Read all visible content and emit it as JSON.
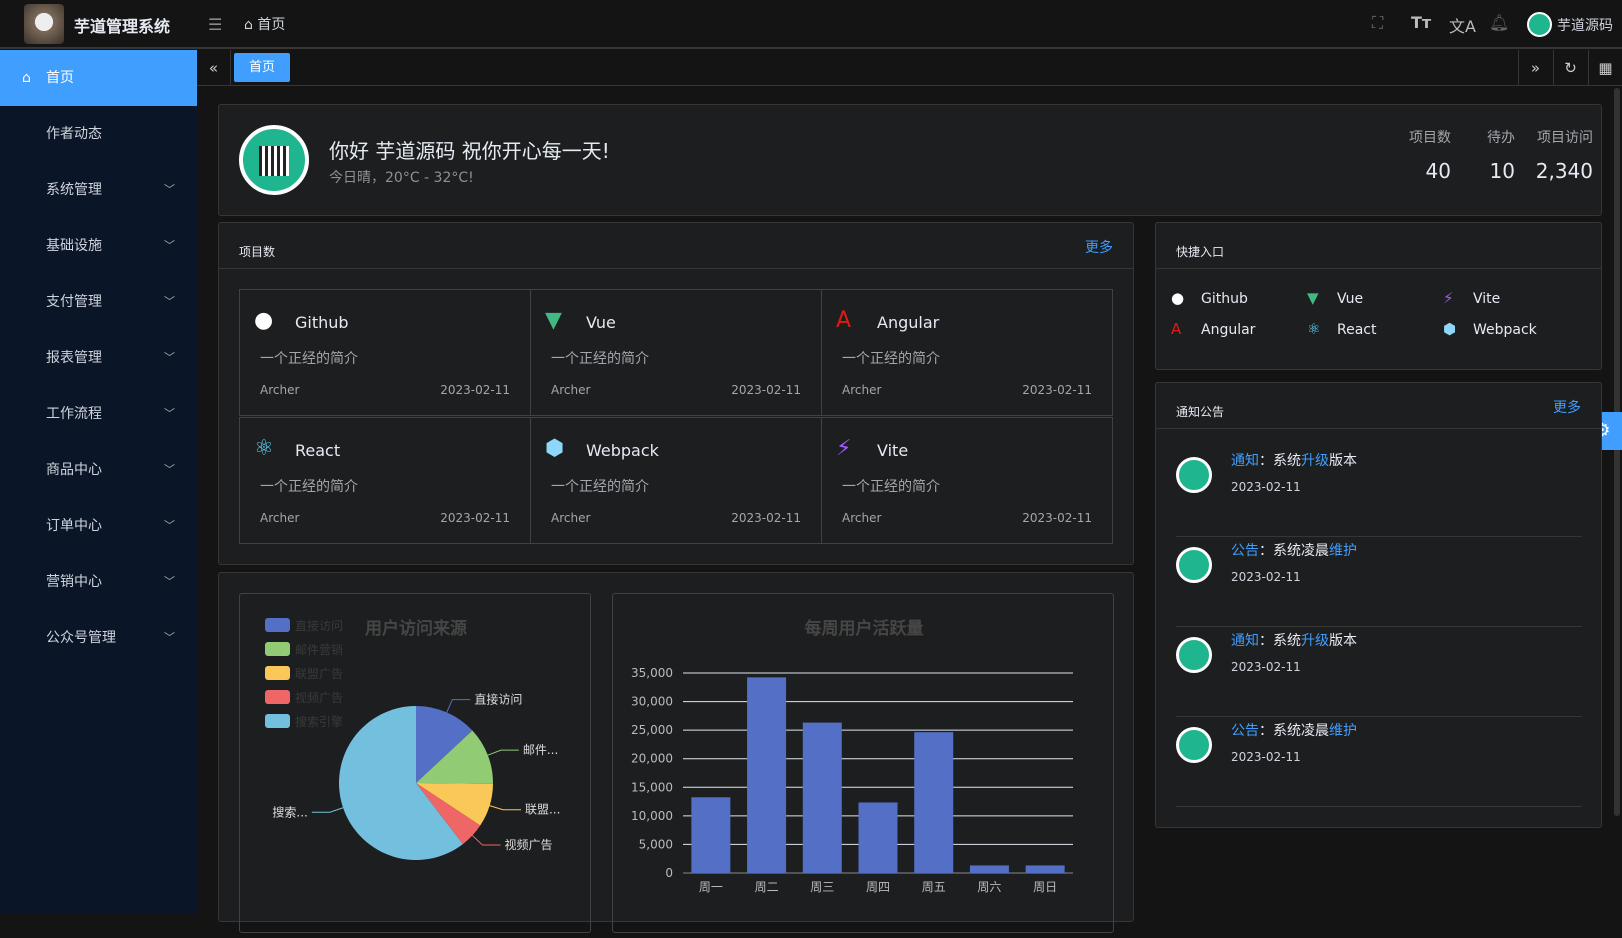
{
  "header": {
    "app_title": "芋道管理系统",
    "breadcrumb": "首页",
    "user_name": "芋道源码",
    "icons": [
      "fullscreen-icon",
      "font-size-icon",
      "translate-icon",
      "bell-icon"
    ]
  },
  "sidebar": {
    "items": [
      {
        "label": "首页",
        "active": true
      },
      {
        "label": "作者动态"
      },
      {
        "label": "系统管理",
        "expandable": true
      },
      {
        "label": "基础设施",
        "expandable": true
      },
      {
        "label": "支付管理",
        "expandable": true
      },
      {
        "label": "报表管理",
        "expandable": true
      },
      {
        "label": "工作流程",
        "expandable": true
      },
      {
        "label": "商品中心",
        "expandable": true
      },
      {
        "label": "订单中心",
        "expandable": true
      },
      {
        "label": "营销中心",
        "expandable": true
      },
      {
        "label": "公众号管理",
        "expandable": true
      }
    ]
  },
  "tabs": {
    "items": [
      "首页"
    ]
  },
  "welcome": {
    "greeting": "你好 芋道源码 祝你开心每一天!",
    "weather": "今日晴，20°C - 32°C!",
    "stats": [
      {
        "label": "项目数",
        "value": "40"
      },
      {
        "label": "待办",
        "value": "10"
      },
      {
        "label": "项目访问",
        "value": "2,340"
      }
    ]
  },
  "projects": {
    "title": "项目数",
    "more": "更多",
    "items": [
      {
        "name": "Github",
        "desc": "一个正经的简介",
        "author": "Archer",
        "date": "2023-02-11",
        "icon": "github-icon",
        "color": "#ffffff"
      },
      {
        "name": "Vue",
        "desc": "一个正经的简介",
        "author": "Archer",
        "date": "2023-02-11",
        "icon": "vue-icon",
        "color": "#42b883"
      },
      {
        "name": "Angular",
        "desc": "一个正经的简介",
        "author": "Archer",
        "date": "2023-02-11",
        "icon": "angular-icon",
        "color": "#dd1b16"
      },
      {
        "name": "React",
        "desc": "一个正经的简介",
        "author": "Archer",
        "date": "2023-02-11",
        "icon": "react-icon",
        "color": "#61dafb"
      },
      {
        "name": "Webpack",
        "desc": "一个正经的简介",
        "author": "Archer",
        "date": "2023-02-11",
        "icon": "webpack-icon",
        "color": "#8ed6fb"
      },
      {
        "name": "Vite",
        "desc": "一个正经的简介",
        "author": "Archer",
        "date": "2023-02-11",
        "icon": "vite-icon",
        "color": "#a259ff"
      }
    ]
  },
  "quick": {
    "title": "快捷入口",
    "items": [
      {
        "name": "Github",
        "icon": "github-icon",
        "color": "#ffffff"
      },
      {
        "name": "Vue",
        "icon": "vue-icon",
        "color": "#42b883"
      },
      {
        "name": "Vite",
        "icon": "vite-icon",
        "color": "#a259ff"
      },
      {
        "name": "Angular",
        "icon": "angular-icon",
        "color": "#dd1b16"
      },
      {
        "name": "React",
        "icon": "react-icon",
        "color": "#61dafb"
      },
      {
        "name": "Webpack",
        "icon": "webpack-icon",
        "color": "#8ed6fb"
      }
    ]
  },
  "notices": {
    "title": "通知公告",
    "more": "更多",
    "items": [
      {
        "type": "通知",
        "sep": "：",
        "pre": "系统",
        "hl": "升级",
        "post": "版本",
        "date": "2023-02-11"
      },
      {
        "type": "公告",
        "sep": "：",
        "pre": "系统凌晨",
        "hl": "维护",
        "post": "",
        "date": "2023-02-11"
      },
      {
        "type": "通知",
        "sep": "：",
        "pre": "系统",
        "hl": "升级",
        "post": "版本",
        "date": "2023-02-11"
      },
      {
        "type": "公告",
        "sep": "：",
        "pre": "系统凌晨",
        "hl": "维护",
        "post": "",
        "date": "2023-02-11"
      }
    ]
  },
  "chart_data": [
    {
      "type": "pie",
      "title": "用户访问来源",
      "legend": "top-left",
      "slices": [
        {
          "name": "直接访问",
          "label": "直接访问",
          "value": 335,
          "color": "#5470c6"
        },
        {
          "name": "邮件营销",
          "label": "邮件...",
          "value": 310,
          "color": "#91cc75"
        },
        {
          "name": "联盟广告",
          "label": "联盟...",
          "value": 234,
          "color": "#fac858"
        },
        {
          "name": "视频广告",
          "label": "视频广告",
          "value": 135,
          "color": "#ee6666"
        },
        {
          "name": "搜索引擎",
          "label": "搜索...",
          "value": 1548,
          "color": "#73c0de"
        }
      ]
    },
    {
      "type": "bar",
      "title": "每周用户活跃量",
      "categories": [
        "周一",
        "周二",
        "周三",
        "周四",
        "周五",
        "周六",
        "周日"
      ],
      "values": [
        13253,
        34235,
        26321,
        12340,
        24643,
        1322,
        1324
      ],
      "ylim": [
        0,
        35000
      ],
      "yticks": [
        "0",
        "5,000",
        "10,000",
        "15,000",
        "20,000",
        "25,000",
        "30,000",
        "35,000"
      ],
      "grid": true,
      "color": "#5470c6"
    }
  ]
}
